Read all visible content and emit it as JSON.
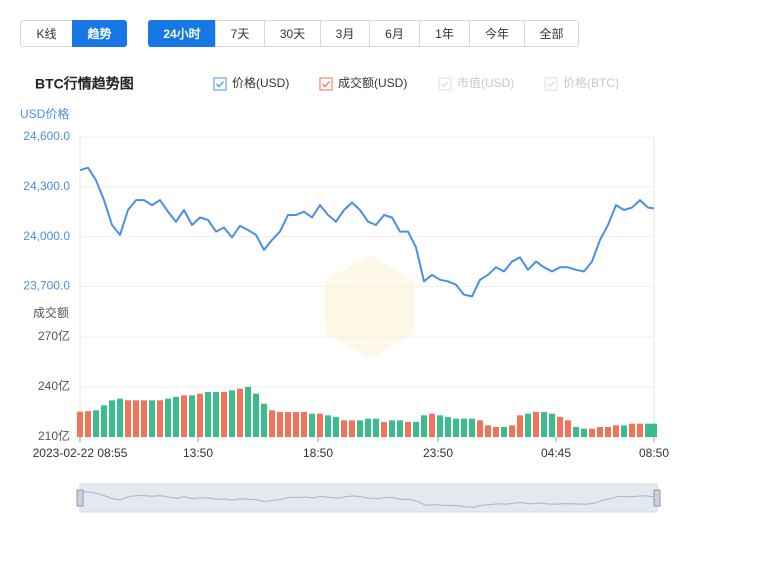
{
  "tabs": [
    "K线",
    "趋势"
  ],
  "ranges": [
    "24小时",
    "7天",
    "30天",
    "3月",
    "6月",
    "1年",
    "今年",
    "全部"
  ],
  "chart_data": {
    "type": "line",
    "title": "BTC行情趋势图",
    "y_label": "USD价格",
    "y2_label": "成交额",
    "legend_disabled": [
      "市值(USD)",
      "价格(BTC)"
    ],
    "x": [
      "08:55",
      "09:15",
      "09:35",
      "09:55",
      "10:15",
      "10:35",
      "10:55",
      "11:15",
      "11:35",
      "11:55",
      "12:15",
      "12:35",
      "12:55",
      "13:15",
      "13:35",
      "13:55",
      "14:15",
      "14:35",
      "14:55",
      "15:15",
      "15:35",
      "15:55",
      "16:15",
      "16:35",
      "16:55",
      "17:15",
      "17:35",
      "17:55",
      "18:15",
      "18:35",
      "18:55",
      "19:15",
      "19:35",
      "19:55",
      "20:15",
      "20:35",
      "20:55",
      "21:15",
      "21:35",
      "21:55",
      "22:15",
      "22:35",
      "22:55",
      "23:15",
      "23:35",
      "23:55",
      "00:15",
      "00:35",
      "00:55",
      "01:15",
      "01:35",
      "01:55",
      "02:15",
      "02:35",
      "02:55",
      "03:15",
      "03:35",
      "03:55",
      "04:15",
      "04:35",
      "04:55",
      "05:15",
      "05:35",
      "05:55",
      "06:15",
      "06:35",
      "06:55",
      "07:15",
      "07:35",
      "07:55",
      "08:15",
      "08:35",
      "08:50"
    ],
    "xlim": [
      "08:55",
      "08:50"
    ],
    "xticks": [
      {
        "value": "08:55",
        "label": "2023-02-22 08:55"
      },
      "13:50",
      "18:50",
      "23:50",
      "04:45",
      "08:50"
    ],
    "ylim": [
      23600,
      24600
    ],
    "yticks": [
      {
        "value": 24600,
        "label": "24,600.0"
      },
      {
        "value": 24300,
        "label": "24,300.0"
      },
      {
        "value": 24000,
        "label": "24,000.0"
      },
      {
        "value": 23700,
        "label": "23,700.0"
      }
    ],
    "y2lim": [
      210,
      270
    ],
    "y2ticks": [
      {
        "value": 270,
        "label": "270亿"
      },
      {
        "value": 240,
        "label": "240亿"
      },
      {
        "value": 210,
        "label": "210亿"
      }
    ],
    "grid": true,
    "series": [
      {
        "name": "价格(USD)",
        "color": "#4a90e2",
        "values": [
          24400,
          24415,
          24340,
          24220,
          24070,
          24010,
          24160,
          24220,
          24220,
          24190,
          24220,
          24150,
          24090,
          24160,
          24070,
          24115,
          24100,
          24030,
          24055,
          23995,
          24065,
          24040,
          24010,
          23920,
          23980,
          24030,
          24130,
          24130,
          24150,
          24115,
          24190,
          24130,
          24090,
          24160,
          24205,
          24160,
          24090,
          24070,
          24130,
          24115,
          24030,
          24030,
          23935,
          23730,
          23770,
          23740,
          23730,
          23710,
          23650,
          23640,
          23740,
          23770,
          23815,
          23790,
          23850,
          23875,
          23800,
          23850,
          23815,
          23790,
          23815,
          23815,
          23800,
          23790,
          23850,
          23980,
          24070,
          24190,
          24160,
          24175,
          24220,
          24175,
          24170
        ]
      },
      {
        "name": "成交额(USD)",
        "type": "bar",
        "axis": "y2",
        "color": "#f0735a",
        "up_color": "#f0735a",
        "down_color": "#3cbc8c",
        "values": [
          225.2,
          225.5,
          226,
          229,
          232,
          233,
          232,
          232,
          232,
          232,
          232,
          233,
          234,
          235,
          235,
          236,
          237,
          237,
          237,
          238,
          239,
          240,
          236,
          230,
          226,
          225,
          225,
          225,
          225,
          224,
          224,
          223,
          222,
          220,
          220,
          220,
          221,
          221,
          219,
          220,
          220,
          219,
          219,
          223,
          224,
          223,
          222,
          221,
          221,
          221,
          220,
          217,
          216,
          216,
          217,
          223,
          224,
          225,
          225,
          224,
          222,
          220,
          216,
          215,
          215,
          216,
          216,
          217,
          217,
          218,
          218,
          218,
          218
        ]
      }
    ]
  }
}
